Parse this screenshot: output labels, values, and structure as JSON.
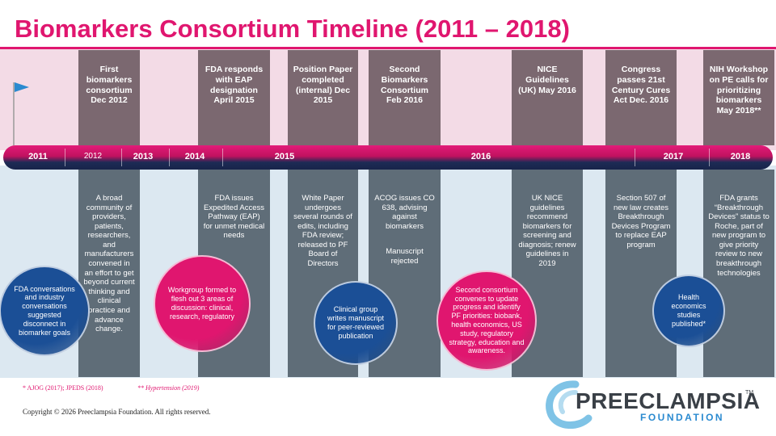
{
  "title": "Biomarkers Consortium Timeline (2011 – 2018)",
  "columns": [
    {
      "top": "First biomarkers consortium Dec 2012",
      "bottom": [
        "A broad community of providers, patients, researchers, and manufacturers convened in an effort to get beyond current thinking and clinical practice and advance change."
      ]
    },
    {
      "top": "FDA responds with EAP designation April 2015",
      "bottom": [
        "FDA issues Expedited Access Pathway (EAP) for unmet medical needs"
      ]
    },
    {
      "top": "Position Paper completed (internal) Dec 2015",
      "bottom": [
        "White Paper undergoes several rounds of edits, including FDA review; released to PF Board of Directors"
      ]
    },
    {
      "top": "Second Biomarkers Consortium Feb 2016",
      "bottom": [
        "ACOG issues CO 638, advising against biomarkers",
        "Manuscript rejected"
      ]
    },
    {
      "top": "NICE Guidelines (UK) May 2016",
      "bottom": [
        "UK NICE guidelines recommend biomarkers for screening and diagnosis; renew guidelines in 2019"
      ]
    },
    {
      "top": "Congress passes 21st Century Cures Act Dec. 2016",
      "bottom": [
        "Section 507 of new law creates Breakthrough Devices Program to replace EAP program"
      ]
    },
    {
      "top": "NIH Workshop on PE calls for prioritizing biomarkers May 2018**",
      "bottom": [
        "FDA grants “Breakthrough Devices” status to Roche, part of new program to give priority review to new breakthrough technologies"
      ]
    }
  ],
  "years": [
    "2011",
    "2012",
    "2013",
    "2014",
    "2015",
    "2016",
    "2017",
    "2018"
  ],
  "circles": [
    "FDA conversations and industry conversations suggested disconnect in biomarker goals",
    "Workgroup formed to flesh out 3 areas of discussion: clinical, research, regulatory",
    "Clinical group writes manuscript for peer-reviewed publication",
    "Second consortium convenes to update progress and identify PF priorities: biobank, health economics, US study, regulatory strategy, education and awareness.",
    "Health economics studies published*"
  ],
  "footnotes": [
    "* AJOG (2017); JPEDS (2018)",
    "** Hypertension (2019)"
  ],
  "copyright": "Copyright © 2026 Preeclampsia Foundation. All rights reserved.",
  "logo": {
    "name": "PREECLAMPSIA",
    "tm": "TM",
    "sub": "FOUNDATION"
  }
}
